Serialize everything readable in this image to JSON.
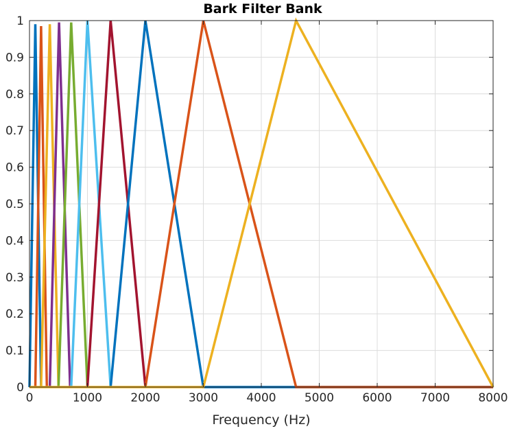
{
  "chart_data": {
    "type": "line",
    "title": "Bark Filter Bank",
    "xlabel": "Frequency (Hz)",
    "ylabel": "",
    "xlim": [
      0,
      8000
    ],
    "ylim": [
      0,
      1
    ],
    "grid": true,
    "xticks": [
      0,
      1000,
      2000,
      3000,
      4000,
      5000,
      6000,
      7000,
      8000
    ],
    "xtick_labels": [
      "0",
      "1000",
      "2000",
      "3000",
      "4000",
      "5000",
      "6000",
      "7000",
      "8000"
    ],
    "yticks": [
      0,
      0.1,
      0.2,
      0.3,
      0.4,
      0.5,
      0.6,
      0.7,
      0.8,
      0.9,
      1
    ],
    "ytick_labels": [
      "0",
      "0.1",
      "0.2",
      "0.3",
      "0.4",
      "0.5",
      "0.6",
      "0.7",
      "0.8",
      "0.9",
      "1"
    ],
    "series": [
      {
        "color": "#0072BD",
        "x": [
          0,
          100,
          200
        ],
        "y": [
          0,
          0.99,
          0
        ]
      },
      {
        "color": "#D95319",
        "x": [
          100,
          200,
          300
        ],
        "y": [
          0,
          0.985,
          0
        ]
      },
      {
        "color": "#EDB120",
        "x": [
          200,
          350,
          500
        ],
        "y": [
          0,
          0.99,
          0
        ]
      },
      {
        "color": "#7E2F8E",
        "x": [
          350,
          510,
          700
        ],
        "y": [
          0,
          0.995,
          0
        ]
      },
      {
        "color": "#77AC30",
        "x": [
          500,
          720,
          1000
        ],
        "y": [
          0,
          0.995,
          0
        ]
      },
      {
        "color": "#4DBEEE",
        "x": [
          720,
          1000,
          1400
        ],
        "y": [
          0,
          1,
          0
        ]
      },
      {
        "color": "#A2142F",
        "x": [
          1000,
          1400,
          2000
        ],
        "y": [
          0,
          1,
          0
        ]
      },
      {
        "color": "#0072BD",
        "x": [
          1400,
          2000,
          3000,
          8000
        ],
        "y": [
          0,
          1,
          0,
          0
        ]
      },
      {
        "color": "#D95319",
        "x": [
          2000,
          3000,
          4600,
          8000
        ],
        "y": [
          0,
          1,
          0,
          0
        ]
      },
      {
        "color": "#EDB120",
        "x": [
          0,
          3000,
          4600,
          8000
        ],
        "y": [
          0,
          0,
          1,
          0
        ]
      }
    ]
  }
}
